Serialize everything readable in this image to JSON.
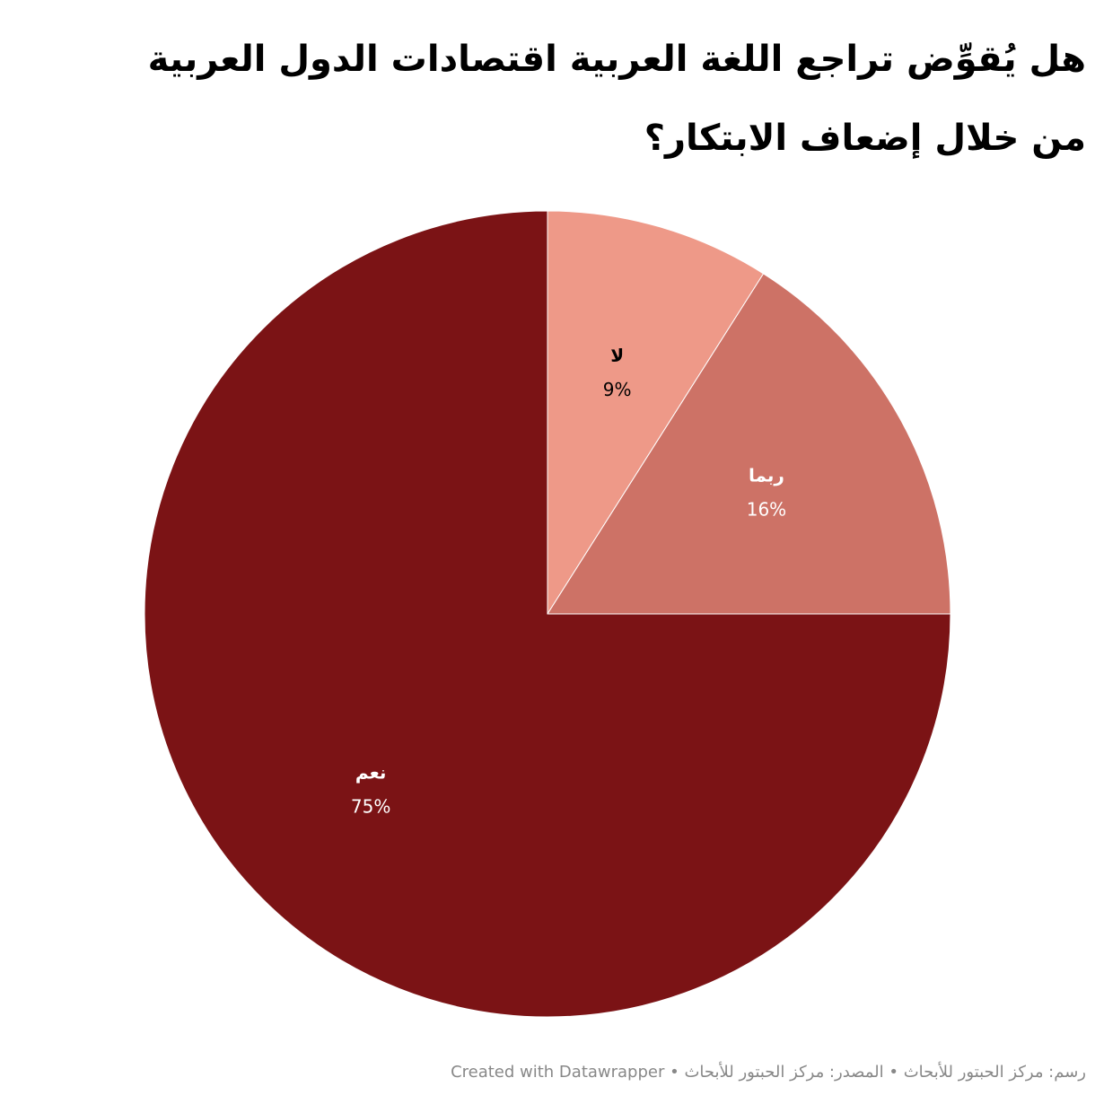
{
  "chart_data": {
    "type": "pie",
    "title": "هل يُقوِّض تراجع اللغة العربية اقتصادات الدول العربية من خلال إضعاف الابتكار؟",
    "categories": [
      "لا",
      "ربما",
      "نعم"
    ],
    "values": [
      9,
      16,
      75
    ],
    "value_labels": [
      "9%",
      "16%",
      "75%"
    ],
    "colors": [
      "#ee9988",
      "#cd7266",
      "#7b1315"
    ],
    "footer": "رسم: مركز الحبتور للأبحاث • المصدر: مركز الحبتور للأبحاث • Created with Datawrapper"
  }
}
